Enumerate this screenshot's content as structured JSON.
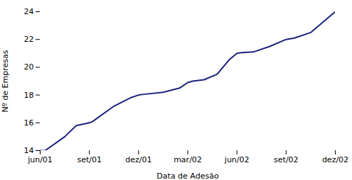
{
  "chart_data": {
    "type": "line",
    "x": [
      0,
      0.3,
      1.5,
      2.2,
      3.0,
      3.2,
      4.5,
      5.5,
      6.0,
      6.3,
      7.5,
      8.5,
      9.0,
      9.3,
      10.0,
      10.8,
      11.5,
      12.0,
      12.3,
      13.0,
      14.0,
      15.0,
      15.5,
      16.5,
      17.5,
      18.0
    ],
    "values": [
      14,
      14,
      15.0,
      15.8,
      16.0,
      16.1,
      17.2,
      17.8,
      18.0,
      18.05,
      18.2,
      18.5,
      18.9,
      19.0,
      19.1,
      19.5,
      20.5,
      21.0,
      21.05,
      21.1,
      21.5,
      22.0,
      22.1,
      22.5,
      23.5,
      24.0
    ],
    "color": "#1a237e",
    "xlabel": "Data de Adesão",
    "ylabel": "Nº de Empresas",
    "xlim": [
      0,
      18
    ],
    "ylim": [
      14,
      24
    ],
    "xticks": [
      {
        "value": 0,
        "label": "jun/01"
      },
      {
        "value": 3,
        "label": "set/01"
      },
      {
        "value": 6,
        "label": "dez/01"
      },
      {
        "value": 9,
        "label": "mar/02"
      },
      {
        "value": 12,
        "label": "jun/02"
      },
      {
        "value": 15,
        "label": "set/02"
      },
      {
        "value": 18,
        "label": "dez/02"
      }
    ],
    "yticks": [
      14,
      16,
      18,
      20,
      22,
      24
    ],
    "grid": false
  }
}
